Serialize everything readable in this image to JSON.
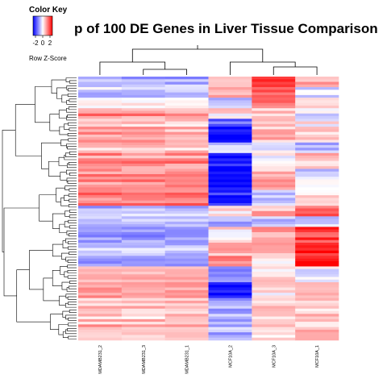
{
  "chart_data": {
    "type": "heatmap",
    "title": "p of 100 DE Genes in Liver Tissue Comparison",
    "color_key": {
      "title": "Color Key",
      "label": "Row Z-Score",
      "ticks": [
        "-2",
        "0",
        "2"
      ],
      "low_color": "#0000ff",
      "mid_color": "#ffffff",
      "high_color": "#ff0000"
    },
    "columns": [
      "MDAMB231_2",
      "MDAMB231_3",
      "MDAMB231_1",
      "MCF10A_2",
      "MCF10A_3",
      "MCF10A_1"
    ],
    "row_count": 100,
    "legend_position": "top-left",
    "dendrogram": "rows and columns"
  }
}
